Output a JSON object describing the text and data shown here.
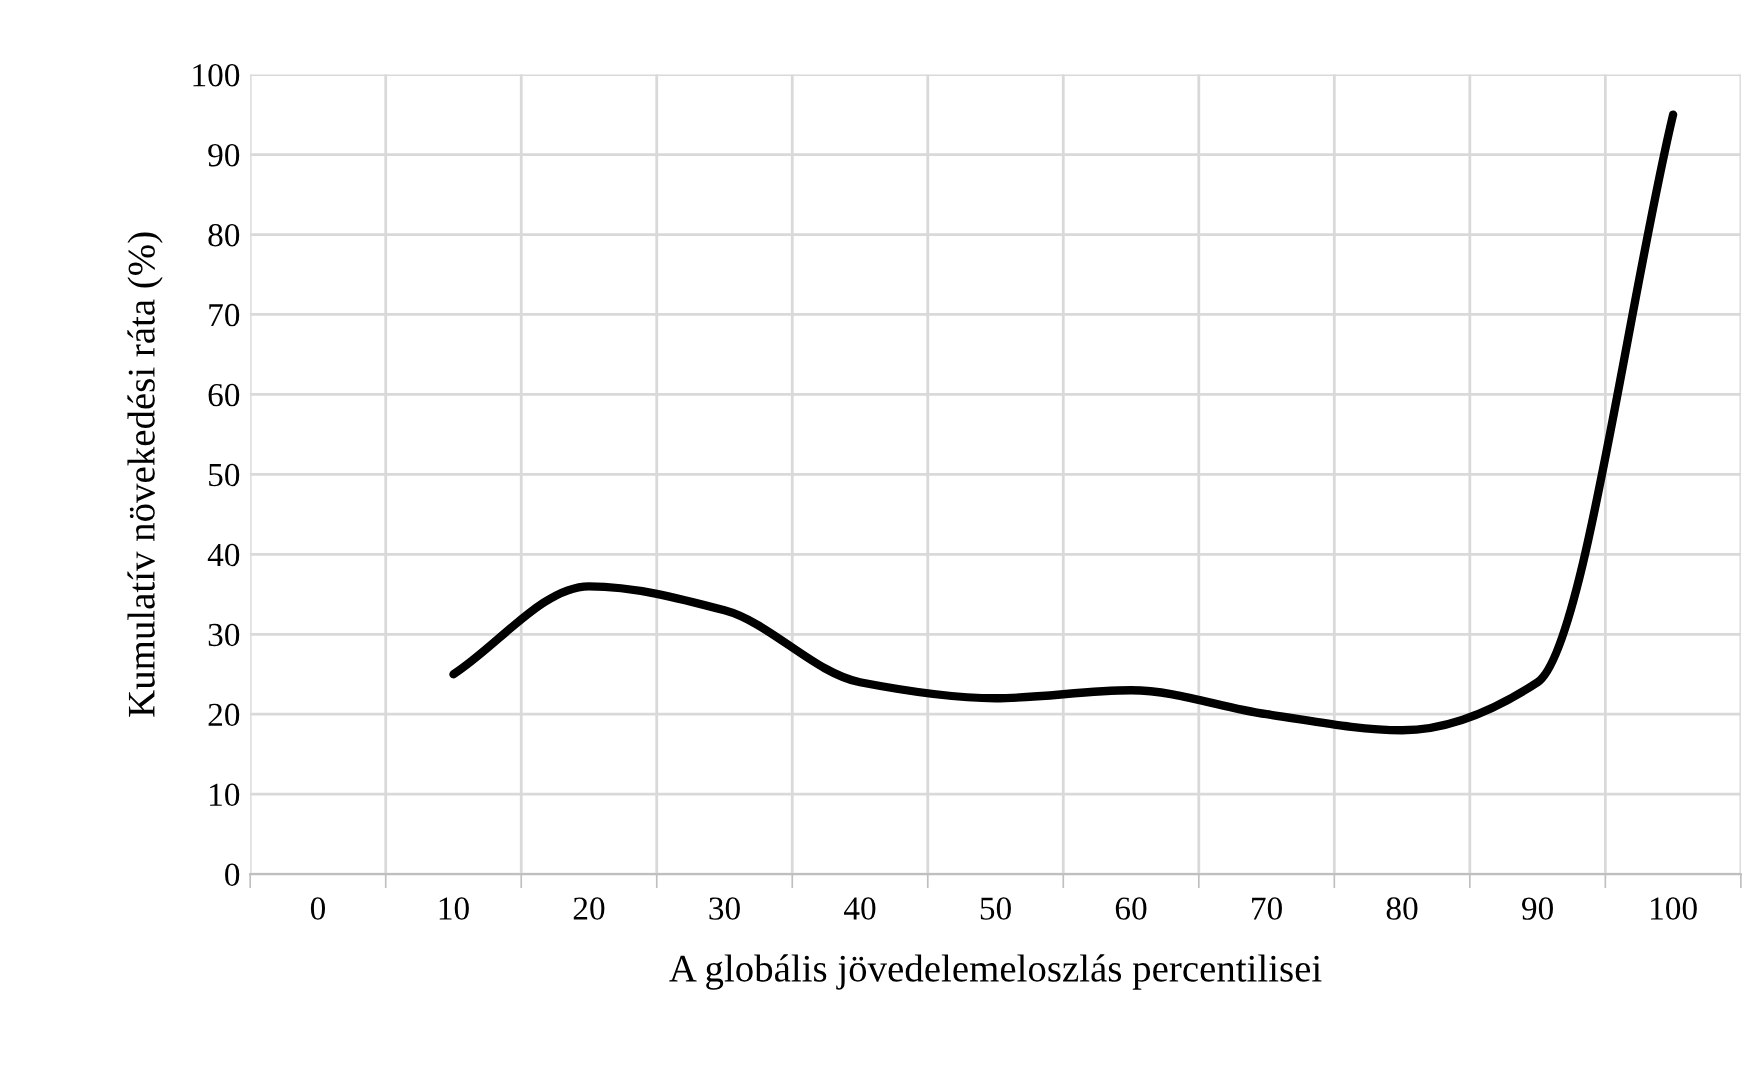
{
  "chart_data": {
    "type": "line",
    "xlabel": "A globális jövedelemeloszlás percentilisei",
    "ylabel": "Kumulatív növekedési ráta (%)",
    "categories": [
      "0",
      "10",
      "20",
      "30",
      "40",
      "50",
      "60",
      "70",
      "80",
      "90",
      "100"
    ],
    "series": [
      {
        "color": "#000000",
        "values": [
          null,
          25,
          36,
          33,
          24,
          22,
          23,
          20,
          18,
          24,
          95
        ]
      }
    ],
    "ylim": [
      0,
      100
    ],
    "yticks": [
      0,
      10,
      20,
      30,
      40,
      50,
      60,
      70,
      80,
      90,
      100
    ],
    "grid": true,
    "marker": "none",
    "line_style": "solid"
  }
}
